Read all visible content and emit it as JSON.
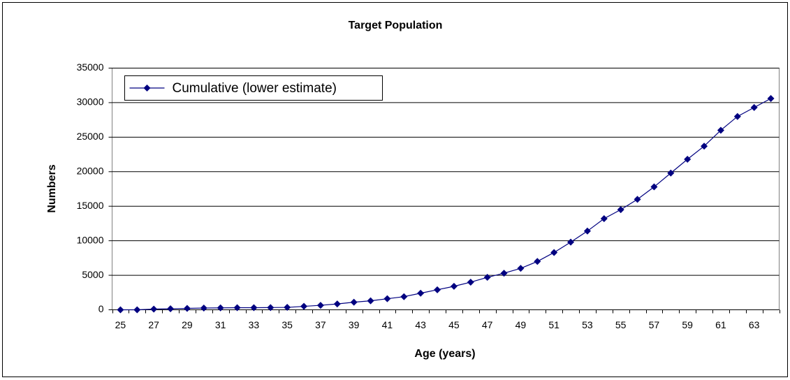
{
  "chart_data": {
    "type": "line",
    "title": "Target Population",
    "x_label": "Age (years)",
    "y_label": "Numbers",
    "categories": [
      25,
      null,
      27,
      null,
      29,
      null,
      31,
      null,
      33,
      null,
      35,
      null,
      37,
      null,
      39,
      null,
      41,
      null,
      43,
      null,
      45,
      null,
      47,
      null,
      49,
      null,
      51,
      null,
      53,
      null,
      55,
      null,
      57,
      null,
      59,
      null,
      61,
      null,
      63,
      null
    ],
    "series": [
      {
        "name": "Cumulative (lower estimate)",
        "color": "#000080",
        "values": [
          0,
          0,
          100,
          150,
          200,
          250,
          280,
          300,
          300,
          320,
          350,
          500,
          650,
          850,
          1100,
          1300,
          1600,
          1900,
          2400,
          2900,
          3400,
          4000,
          4700,
          5300,
          6000,
          7000,
          8300,
          9800,
          11400,
          13200,
          14500,
          16000,
          17800,
          19800,
          21800,
          23700,
          26000,
          28000,
          29300,
          30600
        ]
      }
    ],
    "ylim": [
      0,
      35000
    ],
    "yticks": [
      0,
      5000,
      10000,
      15000,
      20000,
      25000,
      30000,
      35000
    ],
    "grid": true,
    "legend_position": "top-left"
  }
}
